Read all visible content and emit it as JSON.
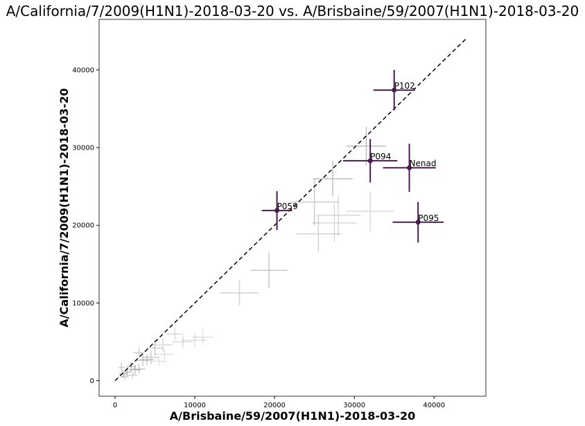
{
  "chart_data": {
    "type": "scatter",
    "title": "A/California/7/2009(H1N1)-2018-03-20 vs. A/Brisbaine/59/2007(H1N1)-2018-03-20",
    "xlabel": "A/Brisbaine/59/2007(H1N1)-2018-03-20",
    "ylabel": "A/California/7/2009(H1N1)-2018-03-20",
    "xlim": [
      -2000,
      46500
    ],
    "ylim": [
      -2000,
      46500
    ],
    "xticks": [
      0,
      10000,
      20000,
      30000,
      40000
    ],
    "yticks": [
      0,
      10000,
      20000,
      30000,
      40000
    ],
    "xtick_labels": [
      "0",
      "10000",
      "20000",
      "30000",
      "40000"
    ],
    "ytick_labels": [
      "0",
      "10000",
      "20000",
      "30000",
      "40000"
    ],
    "identity_line": {
      "x": [
        0,
        44000
      ],
      "y": [
        0,
        44000
      ],
      "style": "dashed",
      "color": "#000000"
    },
    "highlight_color": "#4a1a4f",
    "background_color": "#000000",
    "highlighted": [
      {
        "label": "P102",
        "x": 35000,
        "y": 37400,
        "xerr": 2600,
        "yerr": 2600
      },
      {
        "label": "P094",
        "x": 32000,
        "y": 28300,
        "xerr": 3400,
        "yerr": 2800
      },
      {
        "label": "Nenad",
        "x": 36900,
        "y": 27400,
        "xerr": 3300,
        "yerr": 3100
      },
      {
        "label": "P059",
        "x": 20300,
        "y": 21900,
        "xerr": 1900,
        "yerr": 2500
      },
      {
        "label": "P095",
        "x": 38000,
        "y": 20400,
        "xerr": 3200,
        "yerr": 2600
      }
    ],
    "background_points": [
      {
        "x": 31500,
        "y": 30200,
        "xerr": 2500,
        "yerr": 2500,
        "alpha": 0.25
      },
      {
        "x": 27300,
        "y": 26000,
        "xerr": 2500,
        "yerr": 2300,
        "alpha": 0.25
      },
      {
        "x": 25000,
        "y": 23000,
        "xerr": 3000,
        "yerr": 3000,
        "alpha": 0.2
      },
      {
        "x": 28000,
        "y": 21300,
        "xerr": 2800,
        "yerr": 2600,
        "alpha": 0.15
      },
      {
        "x": 32000,
        "y": 21800,
        "xerr": 3000,
        "yerr": 2600,
        "alpha": 0.15
      },
      {
        "x": 27500,
        "y": 20300,
        "xerr": 2800,
        "yerr": 2500,
        "alpha": 0.15
      },
      {
        "x": 25500,
        "y": 18900,
        "xerr": 2800,
        "yerr": 2300,
        "alpha": 0.18
      },
      {
        "x": 19300,
        "y": 14200,
        "xerr": 2300,
        "yerr": 2300,
        "alpha": 0.22
      },
      {
        "x": 15600,
        "y": 11300,
        "xerr": 2400,
        "yerr": 1600,
        "alpha": 0.18
      },
      {
        "x": 11000,
        "y": 5600,
        "xerr": 1300,
        "yerr": 1000,
        "alpha": 0.12
      },
      {
        "x": 10000,
        "y": 5200,
        "xerr": 1500,
        "yerr": 900,
        "alpha": 0.12
      },
      {
        "x": 8500,
        "y": 5000,
        "xerr": 1300,
        "yerr": 800,
        "alpha": 0.15
      },
      {
        "x": 7500,
        "y": 6000,
        "xerr": 1000,
        "yerr": 800,
        "alpha": 0.15
      },
      {
        "x": 6000,
        "y": 4600,
        "xerr": 1200,
        "yerr": 900,
        "alpha": 0.15
      },
      {
        "x": 5000,
        "y": 4200,
        "xerr": 1000,
        "yerr": 1000,
        "alpha": 0.2
      },
      {
        "x": 4500,
        "y": 3000,
        "xerr": 1000,
        "yerr": 900,
        "alpha": 0.2
      },
      {
        "x": 6200,
        "y": 3400,
        "xerr": 1200,
        "yerr": 700,
        "alpha": 0.12
      },
      {
        "x": 4000,
        "y": 2700,
        "xerr": 900,
        "yerr": 700,
        "alpha": 0.2
      },
      {
        "x": 3500,
        "y": 2600,
        "xerr": 800,
        "yerr": 700,
        "alpha": 0.2
      },
      {
        "x": 3000,
        "y": 1500,
        "xerr": 800,
        "yerr": 600,
        "alpha": 0.22
      },
      {
        "x": 2500,
        "y": 1400,
        "xerr": 700,
        "yerr": 600,
        "alpha": 0.22
      },
      {
        "x": 2000,
        "y": 1800,
        "xerr": 600,
        "yerr": 600,
        "alpha": 0.25
      },
      {
        "x": 1500,
        "y": 1100,
        "xerr": 500,
        "yerr": 500,
        "alpha": 0.25
      },
      {
        "x": 1000,
        "y": 900,
        "xerr": 500,
        "yerr": 500,
        "alpha": 0.25
      },
      {
        "x": 800,
        "y": 1700,
        "xerr": 400,
        "yerr": 600,
        "alpha": 0.2
      },
      {
        "x": 1200,
        "y": 500,
        "xerr": 500,
        "yerr": 400,
        "alpha": 0.2
      },
      {
        "x": 3000,
        "y": 3600,
        "xerr": 700,
        "yerr": 700,
        "alpha": 0.18
      },
      {
        "x": 5500,
        "y": 2500,
        "xerr": 1000,
        "yerr": 600,
        "alpha": 0.12
      },
      {
        "x": 2200,
        "y": 700,
        "xerr": 600,
        "yerr": 400,
        "alpha": 0.18
      }
    ]
  }
}
